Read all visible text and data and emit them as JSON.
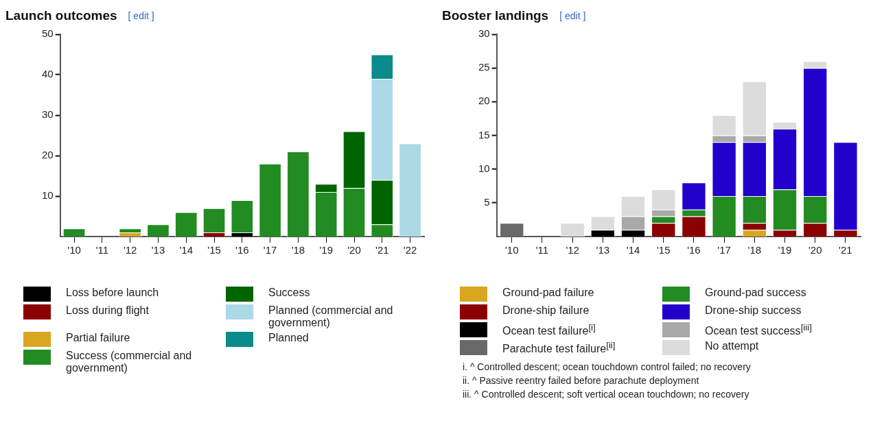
{
  "chart_data": [
    {
      "type": "bar",
      "title": "Launch outcomes",
      "annotations": [
        "[ edit ]"
      ],
      "stacked": true,
      "legend": "bottom",
      "grid": false,
      "categories": [
        "'10",
        "'11",
        "'12",
        "'13",
        "'14",
        "'15",
        "'16",
        "'17",
        "'18",
        "'19",
        "'20",
        "'21",
        "'22"
      ],
      "ylim": [
        0,
        50
      ],
      "yticks": [
        10,
        20,
        30,
        40,
        50
      ],
      "series": [
        {
          "name": "Loss before launch",
          "color": "#000000",
          "values": [
            null,
            null,
            null,
            null,
            null,
            null,
            1,
            null,
            null,
            null,
            null,
            null,
            null
          ]
        },
        {
          "name": "Loss during flight",
          "color": "#8b0000",
          "values": [
            null,
            null,
            null,
            null,
            null,
            1,
            null,
            null,
            null,
            null,
            null,
            null,
            null
          ]
        },
        {
          "name": "Partial failure",
          "color": "#daa520",
          "values": [
            null,
            null,
            1,
            null,
            null,
            null,
            null,
            null,
            null,
            null,
            null,
            null,
            null
          ]
        },
        {
          "name": "Success (commercial and government)",
          "color": "#228b22",
          "values": [
            2,
            null,
            1,
            3,
            6,
            6,
            8,
            18,
            21,
            11,
            12,
            3,
            null
          ]
        },
        {
          "name": "Success",
          "color": "#006400",
          "values": [
            null,
            null,
            null,
            null,
            null,
            null,
            null,
            null,
            null,
            2,
            14,
            11,
            null
          ]
        },
        {
          "name": "Planned (commercial and government)",
          "color": "#add8e6",
          "values": [
            null,
            null,
            null,
            null,
            null,
            null,
            null,
            null,
            null,
            null,
            null,
            25,
            23
          ]
        },
        {
          "name": "Planned",
          "color": "#0a8a8a",
          "values": [
            null,
            null,
            null,
            null,
            null,
            null,
            null,
            null,
            null,
            null,
            null,
            6,
            null
          ]
        }
      ]
    },
    {
      "type": "bar",
      "title": "Booster landings",
      "annotations": [
        "[ edit ]",
        "i. ^ Controlled descent; ocean touchdown control failed; no recovery",
        "ii. ^ Passive reentry failed before parachute deployment",
        "iii. ^ Controlled descent; soft vertical ocean touchdown; no recovery"
      ],
      "stacked": true,
      "legend": "bottom",
      "grid": false,
      "categories": [
        "'10",
        "'11",
        "'12",
        "'13",
        "'14",
        "'15",
        "'16",
        "'17",
        "'18",
        "'19",
        "'20",
        "'21"
      ],
      "ylim": [
        0,
        30
      ],
      "yticks": [
        5,
        10,
        15,
        20,
        25,
        30
      ],
      "series": [
        {
          "name": "Ground-pad failure",
          "color": "#daa520",
          "values": [
            null,
            null,
            null,
            null,
            null,
            null,
            null,
            null,
            1,
            null,
            null,
            null
          ]
        },
        {
          "name": "Drone-ship failure",
          "color": "#8b0000",
          "values": [
            null,
            null,
            null,
            null,
            null,
            2,
            3,
            null,
            1,
            1,
            2,
            1
          ]
        },
        {
          "name": "Ocean test failure$^{[i]}$",
          "color": "#000000",
          "values": [
            null,
            null,
            null,
            1,
            1,
            null,
            null,
            null,
            null,
            null,
            null,
            null
          ]
        },
        {
          "name": "Parachute test failure$^{[ii]}$",
          "color": "#696969",
          "values": [
            2,
            null,
            null,
            null,
            null,
            null,
            null,
            null,
            null,
            null,
            null,
            null
          ]
        },
        {
          "name": "Ground-pad success",
          "color": "#228b22",
          "values": [
            null,
            null,
            null,
            null,
            null,
            1,
            1,
            6,
            4,
            6,
            4,
            null
          ]
        },
        {
          "name": "Drone-ship success",
          "color": "#2200cc",
          "values": [
            null,
            null,
            null,
            null,
            null,
            null,
            4,
            8,
            8,
            9,
            19,
            13
          ]
        },
        {
          "name": "Ocean test success$^{[iii]}$",
          "color": "#a9a9a9",
          "values": [
            null,
            null,
            null,
            null,
            2,
            1,
            null,
            1,
            1,
            null,
            null,
            null
          ]
        },
        {
          "name": "No attempt",
          "color": "#dcdcdc",
          "values": [
            null,
            null,
            2,
            2,
            3,
            3,
            null,
            3,
            8,
            1,
            1,
            null
          ]
        }
      ]
    }
  ]
}
